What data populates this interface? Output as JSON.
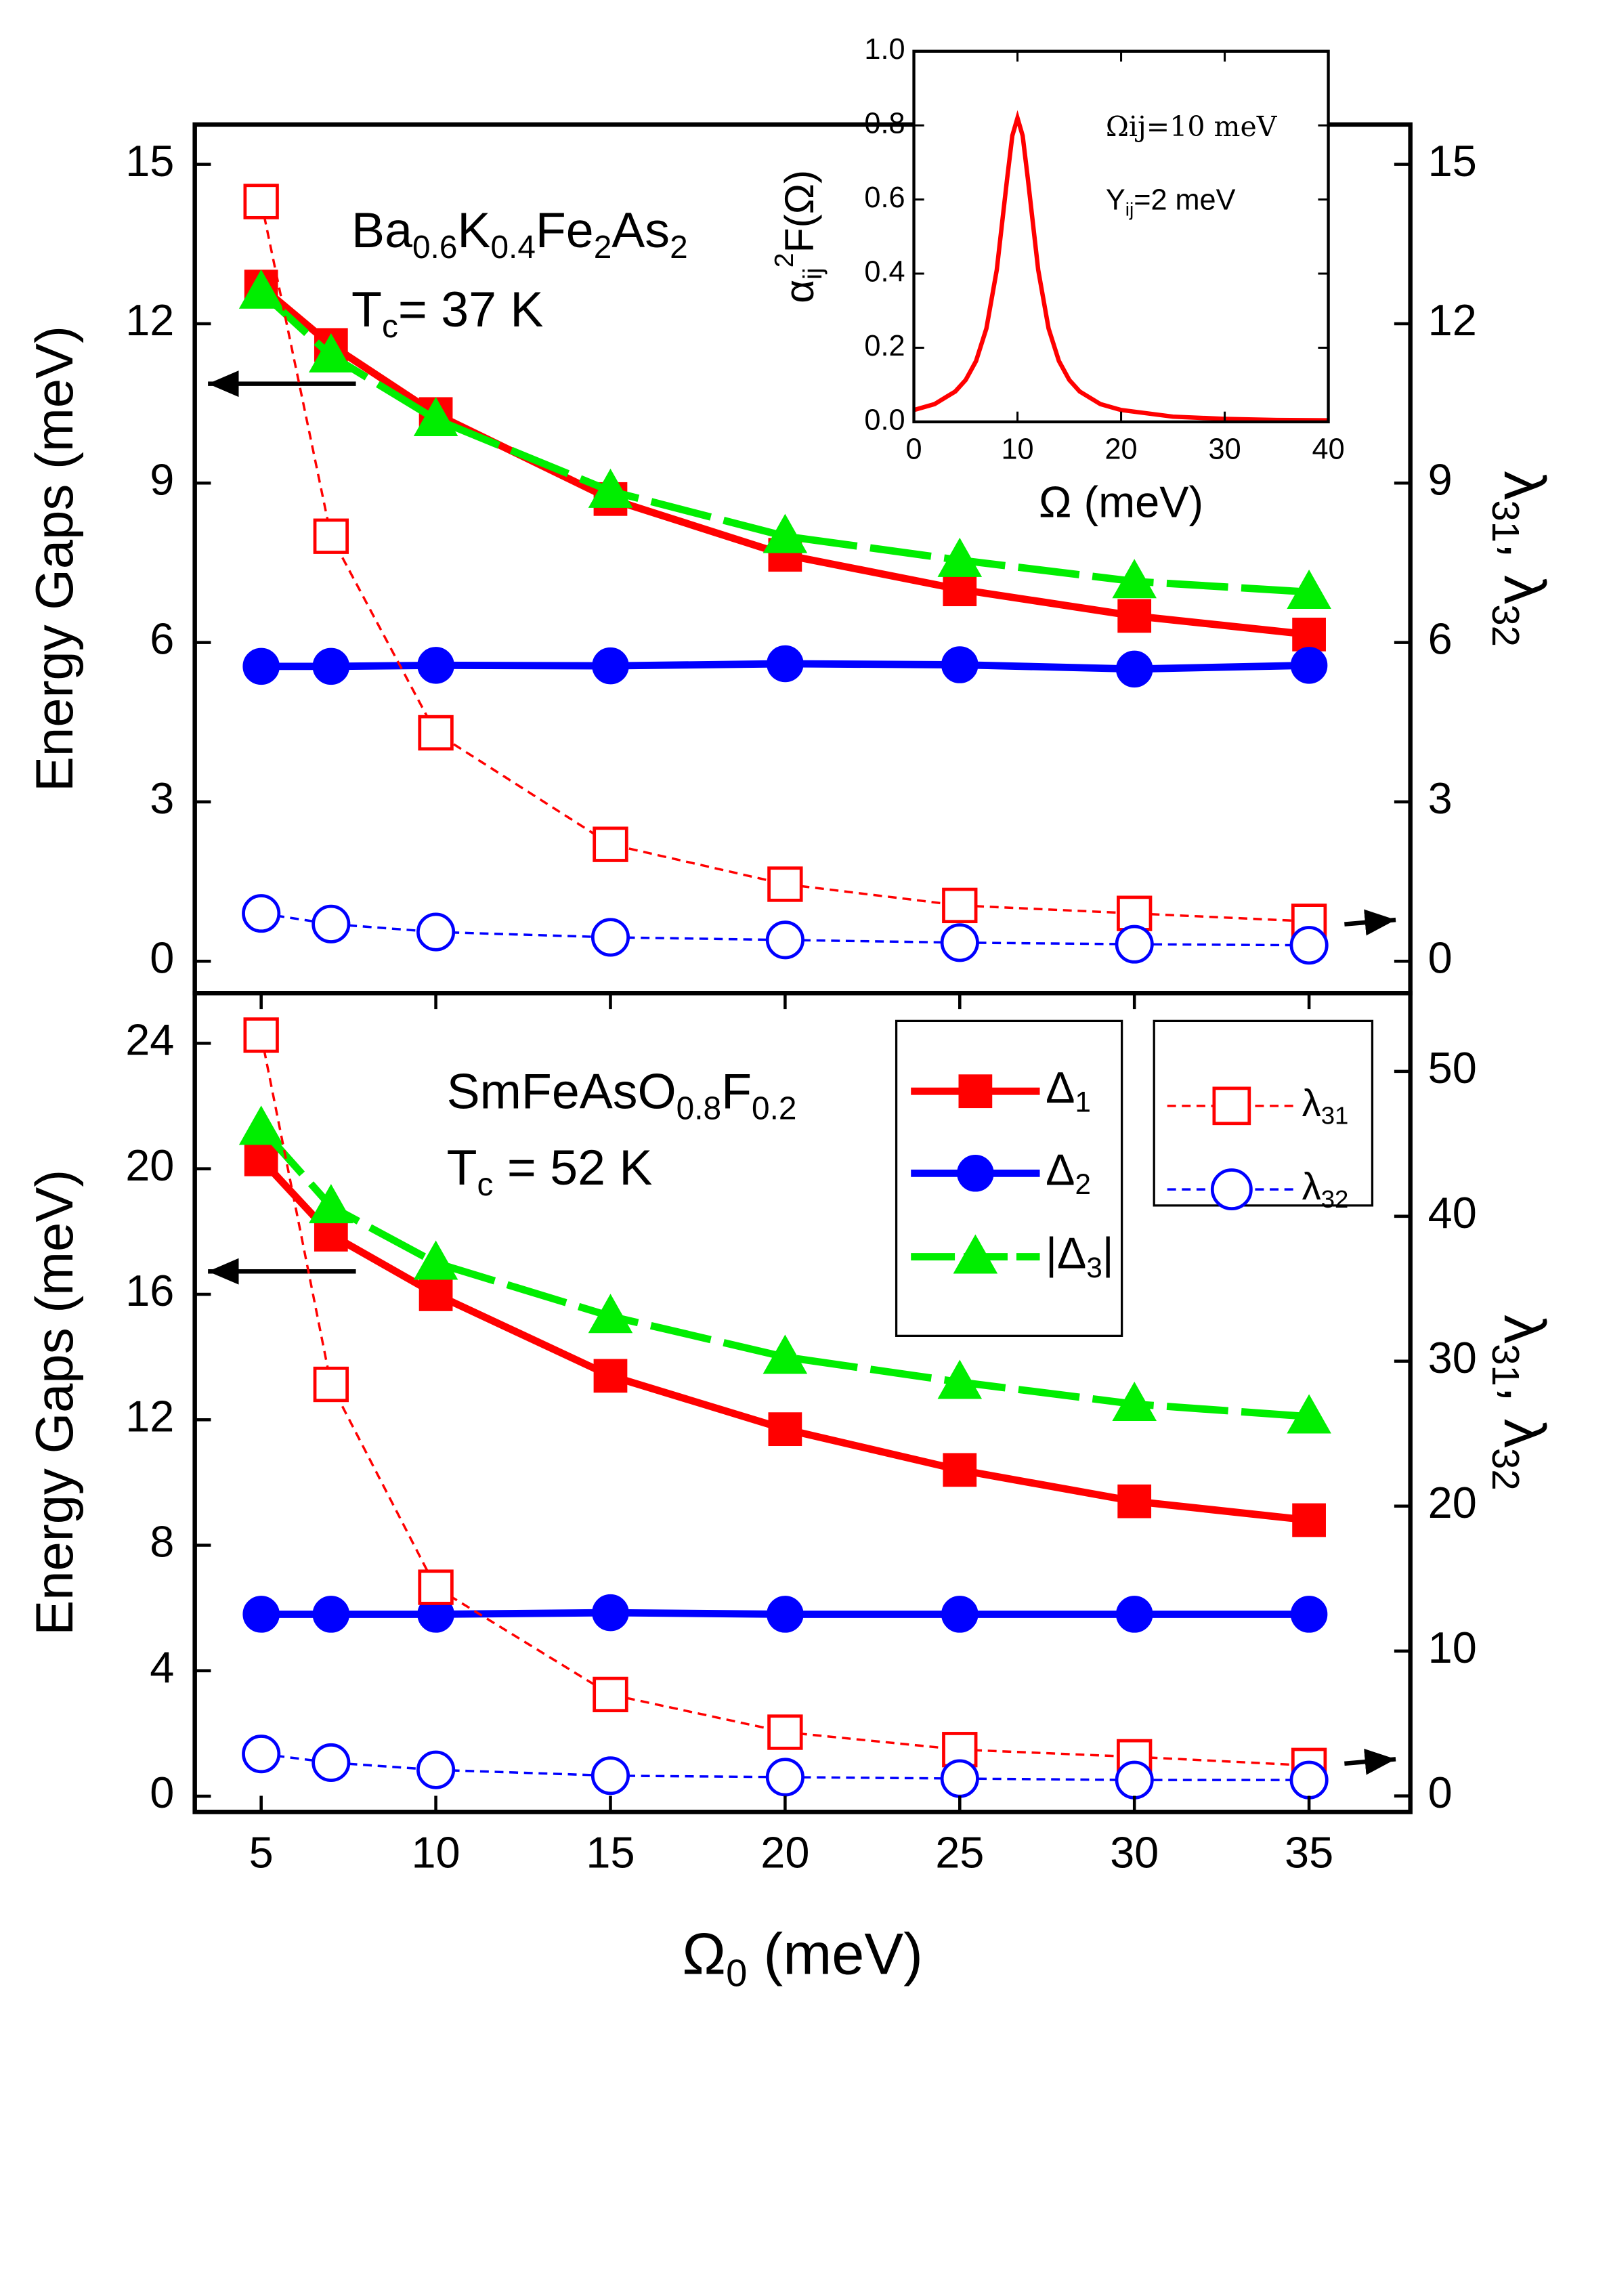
{
  "chart_data": [
    {
      "type": "line",
      "x": [
        5,
        7,
        10,
        15,
        20,
        25,
        30,
        35
      ],
      "xlim": [
        3.1,
        37.9
      ],
      "ylim": [
        -0.6,
        15.75
      ],
      "yticks": [
        0,
        3,
        6,
        9,
        12,
        15
      ],
      "y2lim": [
        -0.6,
        15.75
      ],
      "y2ticks": [
        0,
        3,
        6,
        9,
        12,
        15
      ],
      "ylabel": "Energy Gaps (meV)",
      "y2label": [
        "λ",
        "31",
        ", λ",
        "32"
      ],
      "annotations": [
        [
          "Ba",
          "0.6",
          "K",
          "0.4",
          "Fe",
          "2",
          "As",
          "2"
        ],
        [
          "T",
          "c",
          "= 37 K"
        ]
      ],
      "series": [
        {
          "color": "#ff0000",
          "marker": "square",
          "filled": true,
          "line": "solid",
          "values": [
            12.7,
            11.6,
            10.3,
            8.7,
            7.65,
            7.0,
            6.5,
            6.15
          ]
        },
        {
          "color": "#0000ff",
          "marker": "circle",
          "filled": true,
          "line": "solid",
          "values": [
            5.55,
            5.55,
            5.57,
            5.56,
            5.6,
            5.58,
            5.5,
            5.57
          ]
        },
        {
          "color": "#00ee00",
          "marker": "triangle",
          "filled": true,
          "line": "longdash",
          "values": [
            12.6,
            11.4,
            10.2,
            8.85,
            8.0,
            7.55,
            7.15,
            6.95
          ]
        },
        {
          "color": "#ff0000",
          "marker": "square",
          "filled": false,
          "line": "dash",
          "axis": "y2",
          "values": [
            14.3,
            8.0,
            4.3,
            2.2,
            1.45,
            1.05,
            0.9,
            0.75
          ]
        },
        {
          "color": "#0000ff",
          "marker": "circle",
          "filled": false,
          "line": "dash",
          "axis": "y2",
          "values": [
            0.9,
            0.7,
            0.55,
            0.45,
            0.4,
            0.35,
            0.32,
            0.3
          ]
        }
      ]
    },
    {
      "type": "line",
      "x": [
        5,
        7,
        10,
        15,
        20,
        25,
        30,
        35
      ],
      "xlim": [
        3.1,
        37.9
      ],
      "xticks": [
        5,
        10,
        15,
        20,
        25,
        30,
        35
      ],
      "xlabel": [
        "Ω",
        "0",
        "   (meV)"
      ],
      "ylim": [
        -0.5,
        25.6
      ],
      "yticks": [
        0,
        4,
        8,
        12,
        16,
        20,
        24
      ],
      "y2lim": [
        -1.1,
        55.4
      ],
      "y2ticks": [
        0,
        10,
        20,
        30,
        40,
        50
      ],
      "ylabel": "Energy Gaps (meV)",
      "y2label": [
        "λ",
        "31",
        ", λ",
        "32"
      ],
      "annotations": [
        [
          "SmFeAsO",
          "0.8",
          "F",
          "0.2"
        ],
        [
          "T",
          "c",
          " = 52 K"
        ]
      ],
      "legend": true,
      "series": [
        {
          "name": "Δ1",
          "color": "#ff0000",
          "marker": "square",
          "filled": true,
          "line": "solid",
          "values": [
            20.3,
            17.9,
            16.0,
            13.4,
            11.7,
            10.4,
            9.4,
            8.8
          ]
        },
        {
          "name": "Δ2",
          "color": "#0000ff",
          "marker": "circle",
          "filled": true,
          "line": "solid",
          "values": [
            5.8,
            5.8,
            5.8,
            5.85,
            5.8,
            5.8,
            5.8,
            5.8
          ]
        },
        {
          "name": "|Δ3|",
          "color": "#00ee00",
          "marker": "triangle",
          "filled": true,
          "line": "longdash",
          "values": [
            21.3,
            18.8,
            17.0,
            15.3,
            14.0,
            13.2,
            12.5,
            12.1
          ]
        },
        {
          "name": "λ31",
          "color": "#ff0000",
          "marker": "square",
          "filled": false,
          "line": "dash",
          "axis": "y2",
          "values": [
            52.5,
            28.4,
            14.4,
            7.0,
            4.4,
            3.2,
            2.7,
            2.1
          ]
        },
        {
          "name": "λ32",
          "color": "#0000ff",
          "marker": "circle",
          "filled": false,
          "line": "dash",
          "axis": "y2",
          "values": [
            2.9,
            2.3,
            1.8,
            1.4,
            1.3,
            1.2,
            1.1,
            1.1
          ]
        }
      ]
    },
    {
      "type": "line",
      "x": [
        0,
        2,
        4,
        5,
        6,
        7,
        8,
        9,
        9.5,
        10,
        10.5,
        11,
        12,
        13,
        14,
        15,
        16,
        18,
        20,
        25,
        30,
        35,
        40
      ],
      "xlim": [
        0,
        40
      ],
      "xticks": [
        0,
        10,
        20,
        30,
        40
      ],
      "xlabel": "Ω  (meV)",
      "ylim": [
        0,
        1
      ],
      "yticks": [
        {
          "value": 0,
          "label": "0.0"
        },
        0.2,
        0.4,
        0.6,
        0.8,
        {
          "value": 1,
          "label": "1.0"
        }
      ],
      "ylabel": [
        "α",
        "ij",
        "2",
        "F(Ω)"
      ],
      "annotations": [
        "Ωij=10 meV",
        [
          "Y",
          "ij",
          "=2 meV"
        ]
      ],
      "series": [
        {
          "color": "#ff0000",
          "line": "solid",
          "values": [
            0.032,
            0.048,
            0.082,
            0.113,
            0.164,
            0.252,
            0.41,
            0.656,
            0.772,
            0.82,
            0.772,
            0.656,
            0.41,
            0.252,
            0.164,
            0.113,
            0.082,
            0.048,
            0.032,
            0.014,
            0.008,
            0.005,
            0.004
          ]
        }
      ]
    }
  ]
}
